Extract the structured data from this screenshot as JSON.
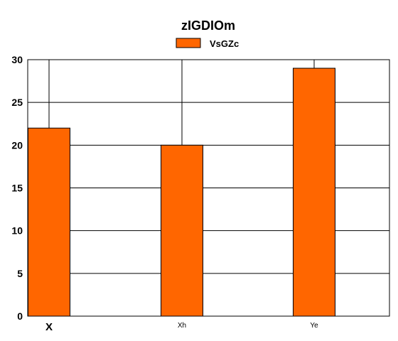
{
  "chart_data": {
    "type": "bar",
    "title": "zIGDIOm",
    "xlabel": "",
    "ylabel": "",
    "categories": [
      "X",
      "Xh",
      "Ye"
    ],
    "series": [
      {
        "name": "VsGZc",
        "values": [
          22,
          20,
          29
        ],
        "color": "#ff6600"
      }
    ],
    "ylim": [
      0,
      30
    ],
    "yticks": [
      0,
      5,
      10,
      15,
      20,
      25,
      30
    ],
    "grid": true,
    "legend": "top-center"
  }
}
